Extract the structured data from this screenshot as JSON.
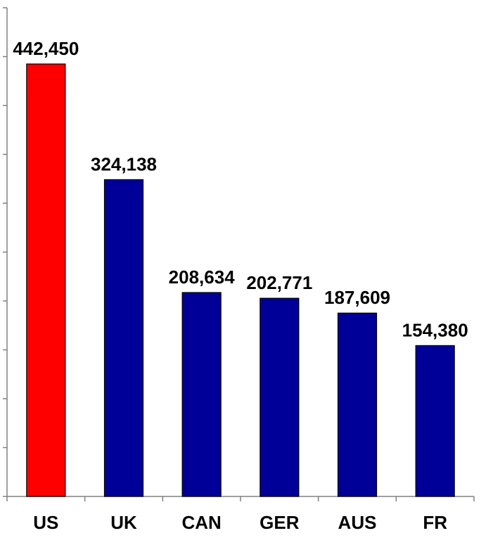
{
  "chart_data": {
    "type": "bar",
    "title": "",
    "xlabel": "",
    "ylabel": "",
    "categories": [
      "US",
      "UK",
      "CAN",
      "GER",
      "AUS",
      "FR"
    ],
    "values": [
      442450,
      324138,
      208634,
      202771,
      187609,
      154380
    ],
    "data_labels": [
      "442,450",
      "324,138",
      "208,634",
      "202,771",
      "187,609",
      "154,380"
    ],
    "ylim": [
      0,
      500000
    ],
    "y_tick_step": 50000,
    "y_tick_labels_shown": false,
    "grid": false,
    "legend": "none",
    "colors": [
      "#ff0000",
      "#000099",
      "#000099",
      "#000099",
      "#000099",
      "#000099"
    ],
    "bar_border_color": "#000000",
    "axis_color": "#808080"
  }
}
